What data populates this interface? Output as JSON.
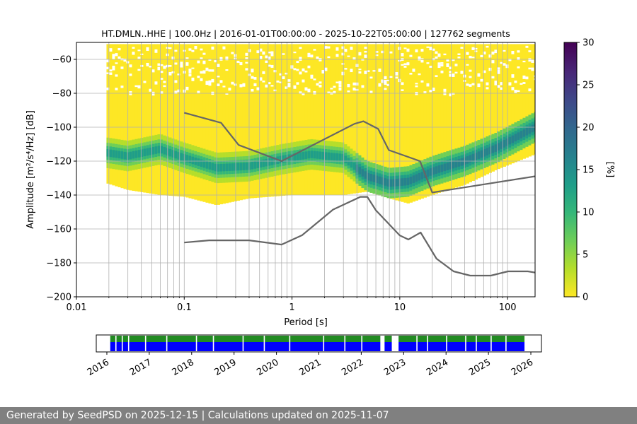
{
  "chart_data": [
    {
      "type": "heatmap",
      "title": "HT.DMLN..HHE | 100.0Hz | 2016-01-01T00:00:00 - 2025-10-22T05:00:00 | 127762 segments",
      "xlabel": "Period [s]",
      "ylabel": "Amplitude [m²/s⁴/Hz] [dB]",
      "xscale": "log",
      "xlim": [
        0.01,
        180
      ],
      "ylim": [
        -200,
        -50
      ],
      "grid": true,
      "x_ticks": [
        {
          "value": 0.01,
          "label": "0.01"
        },
        {
          "value": 0.1,
          "label": "0.1"
        },
        {
          "value": 1,
          "label": "1"
        },
        {
          "value": 10,
          "label": "10"
        },
        {
          "value": 100,
          "label": "100"
        }
      ],
      "y_ticks": [
        {
          "value": -60,
          "label": "−60"
        },
        {
          "value": -80,
          "label": "−80"
        },
        {
          "value": -100,
          "label": "−100"
        },
        {
          "value": -120,
          "label": "−120"
        },
        {
          "value": -140,
          "label": "−140"
        },
        {
          "value": -160,
          "label": "−160"
        },
        {
          "value": -180,
          "label": "−180"
        },
        {
          "value": -200,
          "label": "−200"
        }
      ],
      "psd_period_range": [
        0.019,
        180
      ],
      "psd_mode": {
        "period": [
          0.019,
          0.03,
          0.06,
          0.1,
          0.2,
          0.4,
          0.8,
          1.5,
          3,
          5,
          8,
          12,
          20,
          40,
          80,
          180
        ],
        "db": [
          -115,
          -117,
          -113,
          -118,
          -124,
          -123,
          -119,
          -116,
          -118,
          -129,
          -133,
          -132,
          -126,
          -120,
          -112,
          -100
        ]
      },
      "psd_lower_envelope": {
        "period": [
          0.019,
          0.03,
          0.06,
          0.1,
          0.2,
          0.4,
          1,
          3,
          5,
          8,
          12,
          20,
          40,
          80,
          180
        ],
        "db": [
          -133,
          -137,
          -140,
          -141,
          -146,
          -142,
          -140,
          -140,
          -138,
          -142,
          -145,
          -140,
          -134,
          -125,
          -116
        ]
      },
      "noise_models": [
        {
          "name": "NHNM",
          "color": "#666666",
          "period": [
            0.1,
            0.22,
            0.32,
            0.8,
            3.8,
            4.6,
            6.3,
            7.9,
            15.4,
            20,
            354.8
          ],
          "db": [
            -91.5,
            -97.4,
            -110.5,
            -120,
            -98,
            -96.5,
            -101,
            -113.5,
            -120,
            -138.5,
            -126
          ]
        },
        {
          "name": "NLNM",
          "color": "#666666",
          "period": [
            0.1,
            0.17,
            0.4,
            0.8,
            1.24,
            2.4,
            4.3,
            5,
            6,
            10,
            12,
            15.6,
            21.9,
            31.6,
            45,
            70,
            101,
            154,
            180
          ],
          "db": [
            -168,
            -166.7,
            -166.7,
            -169.2,
            -163.7,
            -148.6,
            -141.1,
            -141.1,
            -149,
            -163.8,
            -166.2,
            -162.1,
            -177.5,
            -185,
            -187.5,
            -187.5,
            -185,
            -185,
            -185.7
          ]
        }
      ]
    },
    {
      "type": "colorbar",
      "label": "[%]",
      "range": [
        0,
        30
      ],
      "ticks": [
        {
          "value": 0,
          "label": "0"
        },
        {
          "value": 5,
          "label": "5"
        },
        {
          "value": 10,
          "label": "10"
        },
        {
          "value": 15,
          "label": "15"
        },
        {
          "value": 20,
          "label": "20"
        },
        {
          "value": 25,
          "label": "25"
        },
        {
          "value": 30,
          "label": "30"
        }
      ],
      "colormap": [
        "#fde725",
        "#b5de2b",
        "#6ece58",
        "#35b779",
        "#1f9e89",
        "#26828e",
        "#31688e",
        "#3e4989",
        "#482878",
        "#440154"
      ]
    },
    {
      "type": "timeline",
      "range": [
        2015.75,
        2026.25
      ],
      "tick_labels": [
        "2016",
        "2017",
        "2018",
        "2019",
        "2020",
        "2021",
        "2022",
        "2023",
        "2024",
        "2025",
        "2026"
      ],
      "data_coverage": [
        [
          2016.08,
          2022.45
        ],
        [
          2022.55,
          2022.72
        ],
        [
          2022.88,
          2025.85
        ]
      ],
      "data_gaps": [
        2016.2,
        2016.35,
        2016.5,
        2016.9,
        2017.4,
        2018.1,
        2018.5,
        2019.2,
        2019.7,
        2020.3,
        2021.1,
        2021.6,
        2022.0,
        2023.3,
        2023.55,
        2024.0,
        2024.45,
        2024.7,
        2025.05,
        2025.4
      ],
      "colors": {
        "upper": "#228b22",
        "lower": "#0000ff"
      }
    }
  ],
  "footer": {
    "text": "Generated by SeedPSD on 2025-12-15 | Calculations updated on 2025-11-07"
  }
}
